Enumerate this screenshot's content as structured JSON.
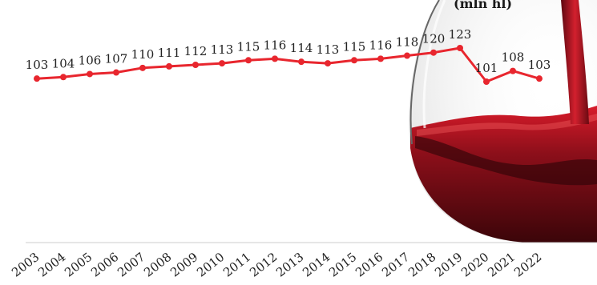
{
  "chart_data": {
    "type": "line",
    "unit_label": "(mln hl)",
    "x": [
      "2003",
      "2004",
      "2005",
      "2006",
      "2007",
      "2008",
      "2009",
      "2010",
      "2011",
      "2012",
      "2013",
      "2014",
      "2015",
      "2016",
      "2017",
      "2018",
      "2019",
      "2020",
      "2021",
      "2022"
    ],
    "series": [
      {
        "values": [
          103,
          104,
          106,
          107,
          110,
          111,
          112,
          113,
          115,
          116,
          114,
          113,
          115,
          116,
          118,
          120,
          123,
          101,
          108,
          103
        ]
      }
    ],
    "colors": {
      "line": "#e8262e",
      "label": "#222222",
      "axis": "#cccccc",
      "wine": "#7a0d16"
    },
    "grid": false
  }
}
